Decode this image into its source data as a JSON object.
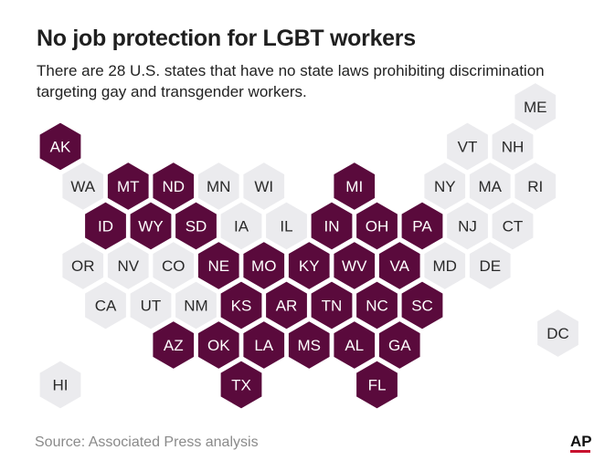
{
  "title": "No job protection for LGBT workers",
  "subtitle": "There are 28 U.S. states that have no state laws prohibiting discrimination targeting gay and transgender workers.",
  "source": "Source: Associated Press analysis",
  "logo_text": "AP",
  "colors": {
    "no_protection": "#5a0a3c",
    "protection": "#ebebee",
    "no_protection_text": "#ffffff",
    "protection_text": "#2a2a2a",
    "logo_accent": "#c8102e"
  },
  "states": [
    {
      "abbr": "ME",
      "col": 10.5,
      "row": 0,
      "no_protection": false
    },
    {
      "abbr": "AK",
      "col": 0,
      "row": 1,
      "no_protection": true
    },
    {
      "abbr": "VT",
      "col": 9,
      "row": 1,
      "no_protection": false
    },
    {
      "abbr": "NH",
      "col": 10,
      "row": 1,
      "no_protection": false
    },
    {
      "abbr": "WA",
      "col": 0.5,
      "row": 2,
      "no_protection": false
    },
    {
      "abbr": "MT",
      "col": 1.5,
      "row": 2,
      "no_protection": true
    },
    {
      "abbr": "ND",
      "col": 2.5,
      "row": 2,
      "no_protection": true
    },
    {
      "abbr": "MN",
      "col": 3.5,
      "row": 2,
      "no_protection": false
    },
    {
      "abbr": "WI",
      "col": 4.5,
      "row": 2,
      "no_protection": false
    },
    {
      "abbr": "MI",
      "col": 6.5,
      "row": 2,
      "no_protection": true
    },
    {
      "abbr": "NY",
      "col": 8.5,
      "row": 2,
      "no_protection": false
    },
    {
      "abbr": "MA",
      "col": 9.5,
      "row": 2,
      "no_protection": false
    },
    {
      "abbr": "RI",
      "col": 10.5,
      "row": 2,
      "no_protection": false
    },
    {
      "abbr": "ID",
      "col": 1,
      "row": 3,
      "no_protection": true
    },
    {
      "abbr": "WY",
      "col": 2,
      "row": 3,
      "no_protection": true
    },
    {
      "abbr": "SD",
      "col": 3,
      "row": 3,
      "no_protection": true
    },
    {
      "abbr": "IA",
      "col": 4,
      "row": 3,
      "no_protection": false
    },
    {
      "abbr": "IL",
      "col": 5,
      "row": 3,
      "no_protection": false
    },
    {
      "abbr": "IN",
      "col": 6,
      "row": 3,
      "no_protection": true
    },
    {
      "abbr": "OH",
      "col": 7,
      "row": 3,
      "no_protection": true
    },
    {
      "abbr": "PA",
      "col": 8,
      "row": 3,
      "no_protection": true
    },
    {
      "abbr": "NJ",
      "col": 9,
      "row": 3,
      "no_protection": false
    },
    {
      "abbr": "CT",
      "col": 10,
      "row": 3,
      "no_protection": false
    },
    {
      "abbr": "OR",
      "col": 0.5,
      "row": 4,
      "no_protection": false
    },
    {
      "abbr": "NV",
      "col": 1.5,
      "row": 4,
      "no_protection": false
    },
    {
      "abbr": "CO",
      "col": 2.5,
      "row": 4,
      "no_protection": false
    },
    {
      "abbr": "NE",
      "col": 3.5,
      "row": 4,
      "no_protection": true
    },
    {
      "abbr": "MO",
      "col": 4.5,
      "row": 4,
      "no_protection": true
    },
    {
      "abbr": "KY",
      "col": 5.5,
      "row": 4,
      "no_protection": true
    },
    {
      "abbr": "WV",
      "col": 6.5,
      "row": 4,
      "no_protection": true
    },
    {
      "abbr": "VA",
      "col": 7.5,
      "row": 4,
      "no_protection": true
    },
    {
      "abbr": "MD",
      "col": 8.5,
      "row": 4,
      "no_protection": false
    },
    {
      "abbr": "DE",
      "col": 9.5,
      "row": 4,
      "no_protection": false
    },
    {
      "abbr": "CA",
      "col": 1,
      "row": 5,
      "no_protection": false
    },
    {
      "abbr": "UT",
      "col": 2,
      "row": 5,
      "no_protection": false
    },
    {
      "abbr": "NM",
      "col": 3,
      "row": 5,
      "no_protection": false
    },
    {
      "abbr": "KS",
      "col": 4,
      "row": 5,
      "no_protection": true
    },
    {
      "abbr": "AR",
      "col": 5,
      "row": 5,
      "no_protection": true
    },
    {
      "abbr": "TN",
      "col": 6,
      "row": 5,
      "no_protection": true
    },
    {
      "abbr": "NC",
      "col": 7,
      "row": 5,
      "no_protection": true
    },
    {
      "abbr": "SC",
      "col": 8,
      "row": 5,
      "no_protection": true
    },
    {
      "abbr": "DC",
      "col": 11,
      "row": 5.7,
      "no_protection": false
    },
    {
      "abbr": "AZ",
      "col": 2.5,
      "row": 6,
      "no_protection": true
    },
    {
      "abbr": "OK",
      "col": 3.5,
      "row": 6,
      "no_protection": true
    },
    {
      "abbr": "LA",
      "col": 4.5,
      "row": 6,
      "no_protection": true
    },
    {
      "abbr": "MS",
      "col": 5.5,
      "row": 6,
      "no_protection": true
    },
    {
      "abbr": "AL",
      "col": 6.5,
      "row": 6,
      "no_protection": true
    },
    {
      "abbr": "GA",
      "col": 7.5,
      "row": 6,
      "no_protection": true
    },
    {
      "abbr": "HI",
      "col": 0,
      "row": 7,
      "no_protection": false
    },
    {
      "abbr": "TX",
      "col": 4,
      "row": 7,
      "no_protection": true
    },
    {
      "abbr": "FL",
      "col": 7,
      "row": 7,
      "no_protection": true
    }
  ]
}
